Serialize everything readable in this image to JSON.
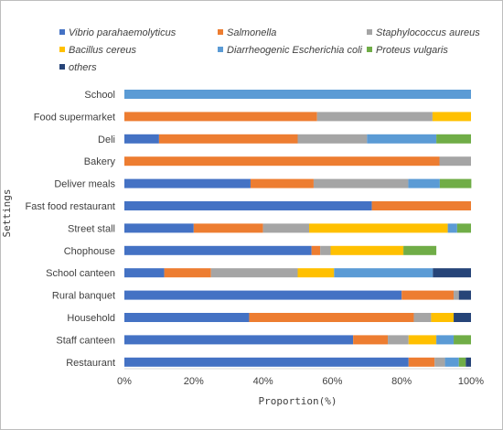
{
  "chart_data": {
    "type": "bar",
    "orientation": "horizontal",
    "stacked": "percent",
    "xlabel": "Proportion(%)",
    "ylabel": "Settings",
    "xlim": [
      0,
      100
    ],
    "ticks": [
      "0%",
      "20%",
      "40%",
      "60%",
      "80%",
      "100%"
    ],
    "legend_placement": "top",
    "grid": false,
    "categories": [
      "School",
      "Food supermarket",
      "Deli",
      "Bakery",
      "Deliver meals",
      "Fast food restaurant",
      "Street stall",
      "Chophouse",
      "School canteen",
      "Rural banquet",
      "Household",
      "Staff canteen",
      "Restaurant"
    ],
    "series": [
      {
        "name": "Vibrio parahaemolyticus",
        "color": "#4472c4",
        "values": [
          0,
          0,
          10,
          0,
          36.4,
          71.4,
          20,
          54,
          11.5,
          80,
          36,
          66,
          82
        ]
      },
      {
        "name": "Salmonella",
        "color": "#ed7d31",
        "values": [
          0,
          55.6,
          40,
          90.9,
          18.2,
          28.6,
          20,
          2.5,
          13.5,
          15,
          47.5,
          10,
          7.5
        ]
      },
      {
        "name": "Staphylococcus aureus",
        "color": "#a5a5a5",
        "values": [
          0,
          33.3,
          20,
          9.1,
          27.3,
          0,
          13.3,
          3,
          25,
          1.5,
          5,
          6,
          3
        ]
      },
      {
        "name": "Bacillus cereus",
        "color": "#ffc000",
        "values": [
          0,
          11.1,
          0,
          0,
          0,
          0,
          40,
          21,
          10.5,
          0,
          6.5,
          8,
          0
        ]
      },
      {
        "name": "Diarrheogenic Escherichia coli",
        "color": "#5b9bd5",
        "values": [
          100,
          0,
          20,
          0,
          9.1,
          0,
          2.7,
          0,
          28.5,
          0,
          0,
          5,
          4
        ]
      },
      {
        "name": "Proteus vulgaris",
        "color": "#70ad47",
        "values": [
          0,
          0,
          10,
          0,
          9.1,
          0,
          4,
          9.5,
          0,
          0,
          0,
          5,
          2
        ]
      },
      {
        "name": "others",
        "color": "#264478",
        "values": [
          0,
          0,
          0,
          0,
          0,
          0,
          0,
          0,
          11,
          3.5,
          5,
          0,
          1.5
        ]
      }
    ]
  }
}
